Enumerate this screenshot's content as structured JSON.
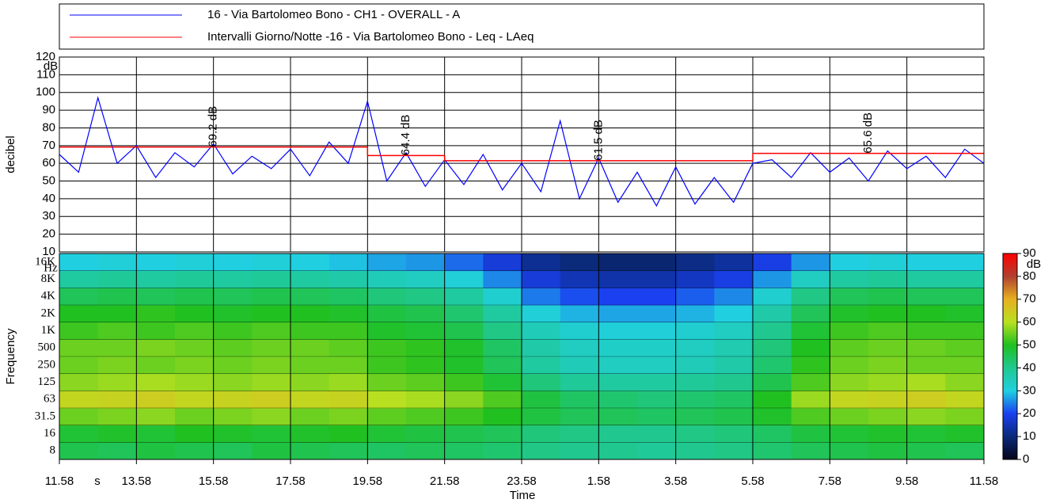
{
  "chart_data": [
    {
      "type": "line",
      "y_label": "decibel",
      "y_unit": "dB",
      "ylim": [
        10,
        120
      ],
      "yticks": [
        10,
        20,
        30,
        40,
        50,
        60,
        70,
        80,
        90,
        100,
        110,
        120
      ],
      "xlim": [
        0,
        24
      ],
      "xticks": [
        0,
        2,
        4,
        6,
        8,
        10,
        12,
        14,
        16,
        18,
        20,
        22,
        24
      ],
      "grid": true,
      "series": [
        {
          "name": "16 - Via Bartolomeo Bono - CH1 - OVERALL - A",
          "color": "#0000ff",
          "x": [
            0,
            0.5,
            1,
            1.5,
            2,
            2.5,
            3,
            3.5,
            4,
            4.5,
            5,
            5.5,
            6,
            6.5,
            7,
            7.5,
            8,
            8.5,
            9,
            9.5,
            10,
            10.5,
            11,
            11.5,
            12,
            12.5,
            13,
            13.5,
            14,
            14.5,
            15,
            15.5,
            16,
            16.5,
            17,
            17.5,
            18,
            18.5,
            19,
            19.5,
            20,
            20.5,
            21,
            21.5,
            22,
            22.5,
            23,
            23.5,
            24
          ],
          "values": [
            65,
            55,
            97,
            60,
            70,
            52,
            66,
            58,
            71,
            54,
            64,
            57,
            68,
            53,
            72,
            60,
            95,
            50,
            66,
            47,
            62,
            48,
            65,
            45,
            60,
            44,
            84,
            40,
            63,
            38,
            55,
            36,
            58,
            37,
            52,
            38,
            60,
            62,
            52,
            66,
            55,
            63,
            50,
            67,
            57,
            64,
            52,
            68,
            60
          ]
        },
        {
          "name": "Intervalli Giorno/Notte -16 - Via Bartolomeo Bono - Leq - LAeq",
          "color": "#ff0000",
          "bins": [
            0,
            8,
            10,
            18,
            24
          ],
          "values": [
            69.2,
            64.4,
            61.5,
            65.6
          ],
          "value_labels": [
            "69.2 dB",
            "64.4 dB",
            "61.5 dB",
            "65.6 dB"
          ]
        }
      ]
    },
    {
      "type": "heatmap",
      "x_label": "Time",
      "x_unit": "s",
      "xlim": [
        0,
        24
      ],
      "xticks": [
        {
          "value": 0,
          "label": "11.58"
        },
        {
          "value": 2,
          "label": "13.58"
        },
        {
          "value": 4,
          "label": "15.58"
        },
        {
          "value": 6,
          "label": "17.58"
        },
        {
          "value": 8,
          "label": "19.58"
        },
        {
          "value": 10,
          "label": "21.58"
        },
        {
          "value": 12,
          "label": "23.58"
        },
        {
          "value": 14,
          "label": "1.58"
        },
        {
          "value": 16,
          "label": "3.58"
        },
        {
          "value": 18,
          "label": "5.58"
        },
        {
          "value": 20,
          "label": "7.58"
        },
        {
          "value": 22,
          "label": "9.58"
        },
        {
          "value": 24,
          "label": "11.58"
        }
      ],
      "x_bins": [
        0,
        1,
        2,
        3,
        4,
        5,
        6,
        7,
        8,
        9,
        10,
        11,
        12,
        13,
        14,
        15,
        16,
        17,
        18,
        19,
        20,
        21,
        22,
        23,
        24
      ],
      "y_label": "Frequency",
      "y_unit": "Hz",
      "y_categories": [
        "8",
        "16",
        "31.5",
        "63",
        "125",
        "250",
        "500",
        "1K",
        "2K",
        "4K",
        "8K",
        "16K"
      ],
      "z": [
        [
          46,
          45,
          47,
          46,
          45,
          47,
          46,
          45,
          44,
          45,
          44,
          43,
          41,
          40,
          40,
          39,
          40,
          41,
          43,
          45,
          46,
          47,
          46,
          45
        ],
        [
          48,
          49,
          48,
          50,
          49,
          48,
          49,
          50,
          48,
          47,
          46,
          45,
          42,
          41,
          40,
          40,
          41,
          42,
          44,
          47,
          48,
          49,
          48,
          49
        ],
        [
          55,
          56,
          57,
          55,
          56,
          57,
          55,
          56,
          54,
          53,
          52,
          50,
          47,
          45,
          45,
          44,
          45,
          46,
          49,
          53,
          55,
          56,
          57,
          56
        ],
        [
          62,
          63,
          64,
          62,
          63,
          64,
          62,
          63,
          60,
          59,
          57,
          53,
          47,
          44,
          43,
          42,
          43,
          44,
          50,
          58,
          62,
          63,
          64,
          62
        ],
        [
          57,
          58,
          59,
          58,
          57,
          58,
          57,
          58,
          55,
          54,
          52,
          48,
          42,
          39,
          38,
          38,
          39,
          40,
          46,
          53,
          57,
          58,
          59,
          57
        ],
        [
          55,
          56,
          55,
          56,
          55,
          56,
          55,
          55,
          52,
          51,
          49,
          45,
          38,
          35,
          34,
          34,
          35,
          37,
          43,
          51,
          55,
          56,
          55,
          55
        ],
        [
          55,
          55,
          56,
          55,
          54,
          55,
          55,
          54,
          52,
          51,
          49,
          44,
          37,
          34,
          33,
          33,
          34,
          36,
          42,
          50,
          54,
          55,
          55,
          54
        ],
        [
          52,
          53,
          52,
          53,
          52,
          53,
          52,
          52,
          49,
          48,
          46,
          41,
          35,
          32,
          31,
          31,
          32,
          34,
          40,
          48,
          52,
          53,
          52,
          52
        ],
        [
          50,
          50,
          51,
          50,
          49,
          50,
          50,
          49,
          47,
          46,
          43,
          38,
          31,
          28,
          27,
          27,
          28,
          30,
          37,
          45,
          49,
          50,
          50,
          49
        ],
        [
          45,
          46,
          45,
          46,
          45,
          46,
          45,
          44,
          42,
          41,
          38,
          32,
          24,
          21,
          20,
          20,
          22,
          25,
          32,
          41,
          45,
          46,
          45,
          45
        ],
        [
          38,
          39,
          38,
          39,
          38,
          39,
          38,
          37,
          35,
          34,
          31,
          25,
          18,
          15,
          14,
          14,
          16,
          19,
          26,
          34,
          38,
          39,
          38,
          38
        ],
        [
          30,
          31,
          30,
          31,
          30,
          31,
          30,
          29,
          27,
          26,
          23,
          18,
          12,
          10,
          9,
          9,
          11,
          13,
          19,
          26,
          30,
          31,
          30,
          30
        ]
      ],
      "colorbar": {
        "lim": [
          0,
          90
        ],
        "ticks": [
          0,
          10,
          20,
          30,
          40,
          50,
          60,
          70,
          80,
          90
        ],
        "unit": "dB",
        "colormap": [
          "#05051a",
          "#0a2a7a",
          "#1a40f0",
          "#20d0e0",
          "#20c890",
          "#20c020",
          "#b8e020",
          "#e8b020",
          "#b04030",
          "#ff0000"
        ]
      }
    }
  ]
}
